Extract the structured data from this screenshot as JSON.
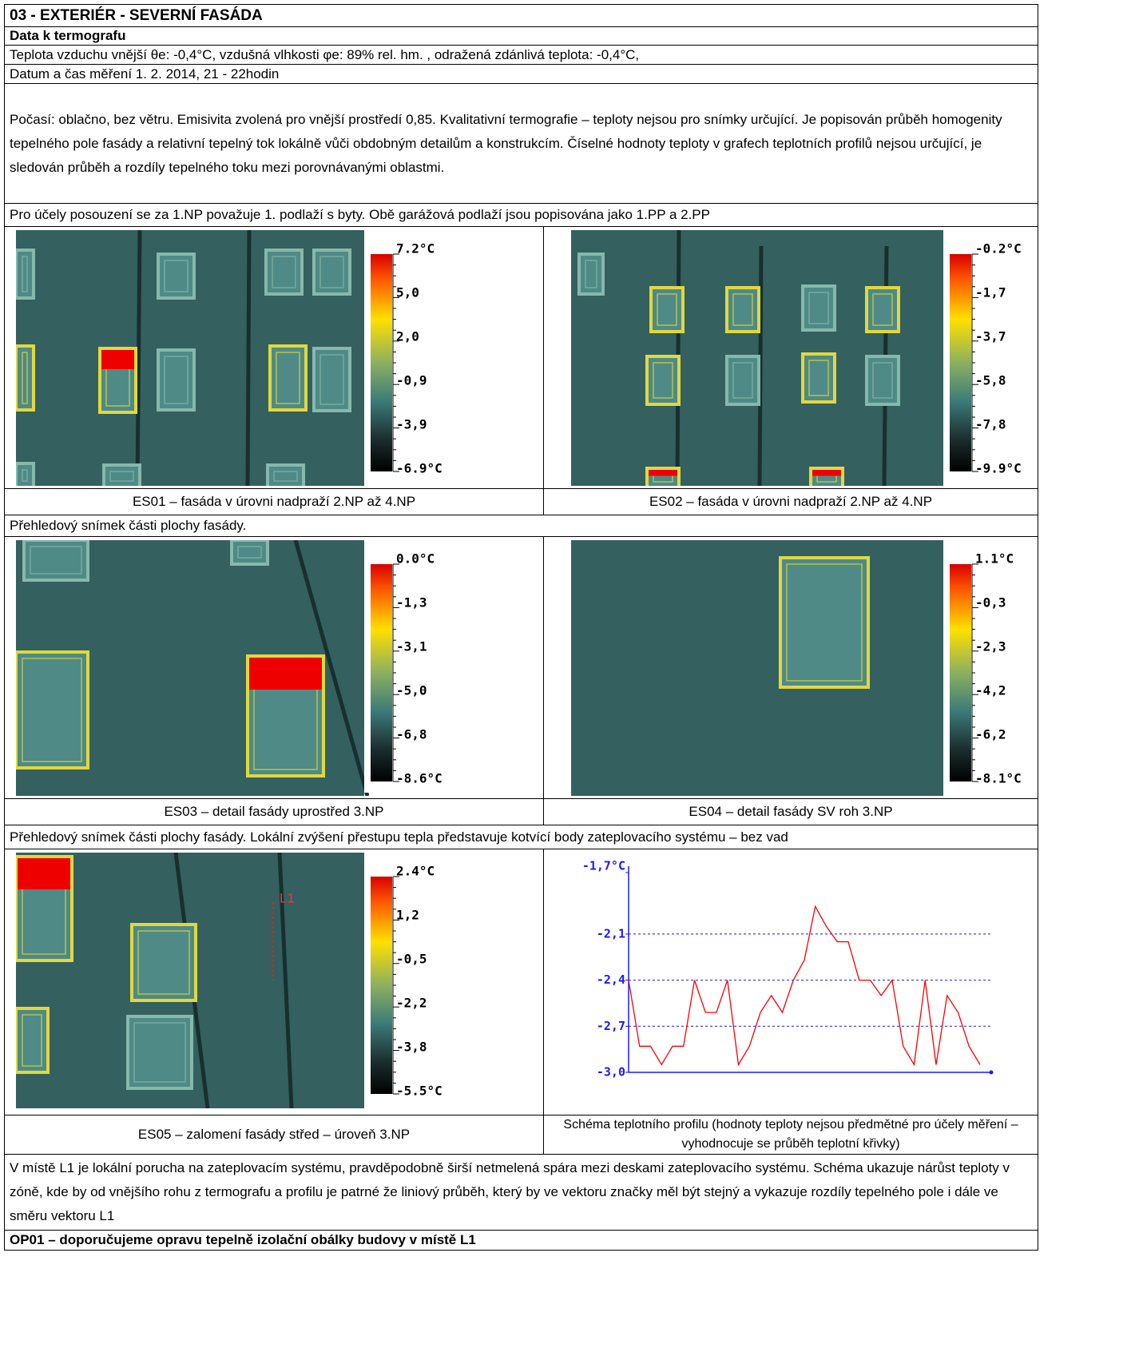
{
  "title": "03 - EXTERIÉR - SEVERNÍ FASÁDA",
  "section": "Data k termografu",
  "conditions": "Teplota vzduchu vnější θe: -0,4°C, vzdušná vlhkosti  φe: 89% rel. hm. , odražená zdánlivá teplota: -0,4°C,",
  "datetime": "Datum a čas měření 1. 2. 2014, 21 - 22hodin",
  "weather": "Počasí: oblačno, bez větru. Emisivita zvolená pro vnější prostředí 0,85. Kvalitativní termografie – teploty nejsou pro snímky určující. Je popisován průběh homogenity tepelného pole fasády a relativní tepelný tok lokálně vůči obdobným detailům a konstrukcím.  Číselné hodnoty teploty v grafech teplotních profilů nejsou určující, je sledován průběh a rozdíly tepelného toku mezi porovnávanými oblastmi.",
  "note": "Pro účely posouzení se za 1.NP považuje 1. podlaží s byty. Obě garážová podlaží jsou popisována jako 1.PP a 2.PP",
  "images": [
    {
      "caption": "ES01 – fasáda v úrovni nadpraží 2.NP až 4.NP",
      "scale": [
        "7.2°C",
        "5,0",
        "2,0",
        "-0,9",
        "-3,9",
        "-6.9°C"
      ]
    },
    {
      "caption": "ES02 – fasáda v úrovni nadpraží 2.NP až 4.NP",
      "scale": [
        "-0.2°C",
        "-1,7",
        "-3,7",
        "-5,8",
        "-7,8",
        "-9.9°C"
      ]
    },
    {
      "caption": "ES03 – detail fasády uprostřed 3.NP",
      "scale": [
        "0.0°C",
        "-1,3",
        "-3,1",
        "-5,0",
        "-6,8",
        "-8.6°C"
      ]
    },
    {
      "caption": "ES04 – detail fasády SV roh 3.NP",
      "scale": [
        "1.1°C",
        "-0,3",
        "-2,3",
        "-4,2",
        "-6,2",
        "-8.1°C"
      ]
    },
    {
      "caption": "ES05 – zalomení fasády střed – úroveň 3.NP",
      "scale": [
        "2.4°C",
        "1,2",
        "-0,5",
        "-2,2",
        "-3,8",
        "-5.5°C"
      ],
      "marker": "L1"
    }
  ],
  "overview_1": "Přehledový snímek části plochy fasády.",
  "overview_2": "Přehledový snímek části plochy fasády. Lokální zvýšení přestupu tepla představuje kotvící body zateplovacího systému – bez vad",
  "profile": {
    "type": "line",
    "caption": "Schéma teplotního profilu (hodnoty teploty nejsou předmětné pro účely měření – vyhodnocuje se průběh teplotní křivky)",
    "color": "#ff0000",
    "ylim": [
      -3.0,
      -1.7
    ],
    "yticks": [
      {
        "value": -3.0,
        "label": "-3,0"
      },
      {
        "value": -2.7,
        "label": "-2,7"
      },
      {
        "value": -2.4,
        "label": "-2,4"
      },
      {
        "value": -2.1,
        "label": "-2,1"
      },
      {
        "value": -1.7,
        "label": "-1,7°C"
      }
    ],
    "values": [
      -2.4,
      -2.83,
      -2.83,
      -2.95,
      -2.83,
      -2.83,
      -2.4,
      -2.61,
      -2.61,
      -2.4,
      -2.95,
      -2.83,
      -2.61,
      -2.5,
      -2.61,
      -2.4,
      -2.27,
      -1.92,
      -2.05,
      -2.15,
      -2.15,
      -2.4,
      -2.4,
      -2.5,
      -2.4,
      -2.83,
      -2.95,
      -2.4,
      -2.95,
      -2.5,
      -2.61,
      -2.83,
      -2.95
    ]
  },
  "finding": "V místě L1  je lokální porucha na zateplovacím systému, pravděpodobně širší netmelená spára mezi deskami zateplovacího systému. Schéma ukazuje nárůst teploty v zóně, kde by od vnějšího rohu z termografu a profilu je patrné že liniový průběh, který by ve vektoru značky měl být stejný a vykazuje rozdíly tepelného pole i dále ve směru vektoru L1",
  "recommendation": "OP01 – doporučujeme opravu tepelně izolační obálky budovy v místě L1"
}
